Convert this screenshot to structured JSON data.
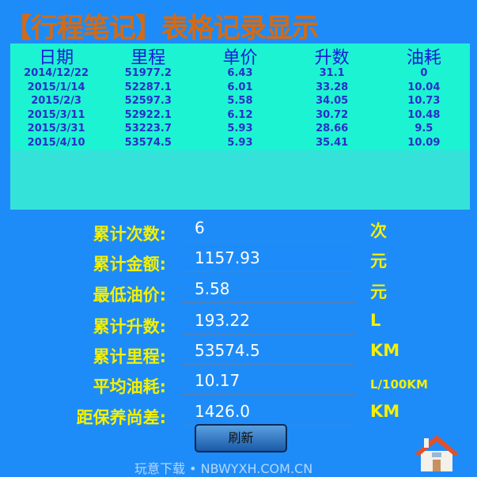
{
  "title": "【行程笔记】表格记录显示",
  "table": {
    "headers": [
      "日期",
      "里程",
      "单价",
      "升数",
      "油耗"
    ],
    "rows": [
      [
        "2014/12/22",
        "51977.2",
        "6.43",
        "31.1",
        "0"
      ],
      [
        "2015/1/14",
        "52287.1",
        "6.01",
        "33.28",
        "10.04"
      ],
      [
        "2015/2/3",
        "52597.3",
        "5.58",
        "34.05",
        "10.73"
      ],
      [
        "2015/3/11",
        "52922.1",
        "6.12",
        "30.72",
        "10.48"
      ],
      [
        "2015/3/31",
        "53223.7",
        "5.93",
        "28.66",
        "9.5"
      ],
      [
        "2015/4/10",
        "53574.5",
        "5.93",
        "35.41",
        "10.09"
      ]
    ]
  },
  "stats": [
    {
      "label": "累计次数:",
      "value": "6",
      "unit": "次"
    },
    {
      "label": "累计金额:",
      "value": "1157.93",
      "unit": "元"
    },
    {
      "label": "最低油价:",
      "value": "5.58",
      "unit": "元"
    },
    {
      "label": "累计升数:",
      "value": "193.22",
      "unit": "L"
    },
    {
      "label": "累计里程:",
      "value": "53574.5",
      "unit": "KM"
    },
    {
      "label": "平均油耗:",
      "value": "10.17",
      "unit": "L/100KM"
    },
    {
      "label": "距保养尚差:",
      "value": "1426.0",
      "unit": "KM"
    }
  ],
  "refresh_label": "刷新",
  "watermark": "玩意下载 • NBWYXH.COM.CN",
  "colors": {
    "background": "#1e8cf8",
    "title": "#d66a12",
    "label": "#f4f000",
    "table": "#1cf3d2"
  }
}
